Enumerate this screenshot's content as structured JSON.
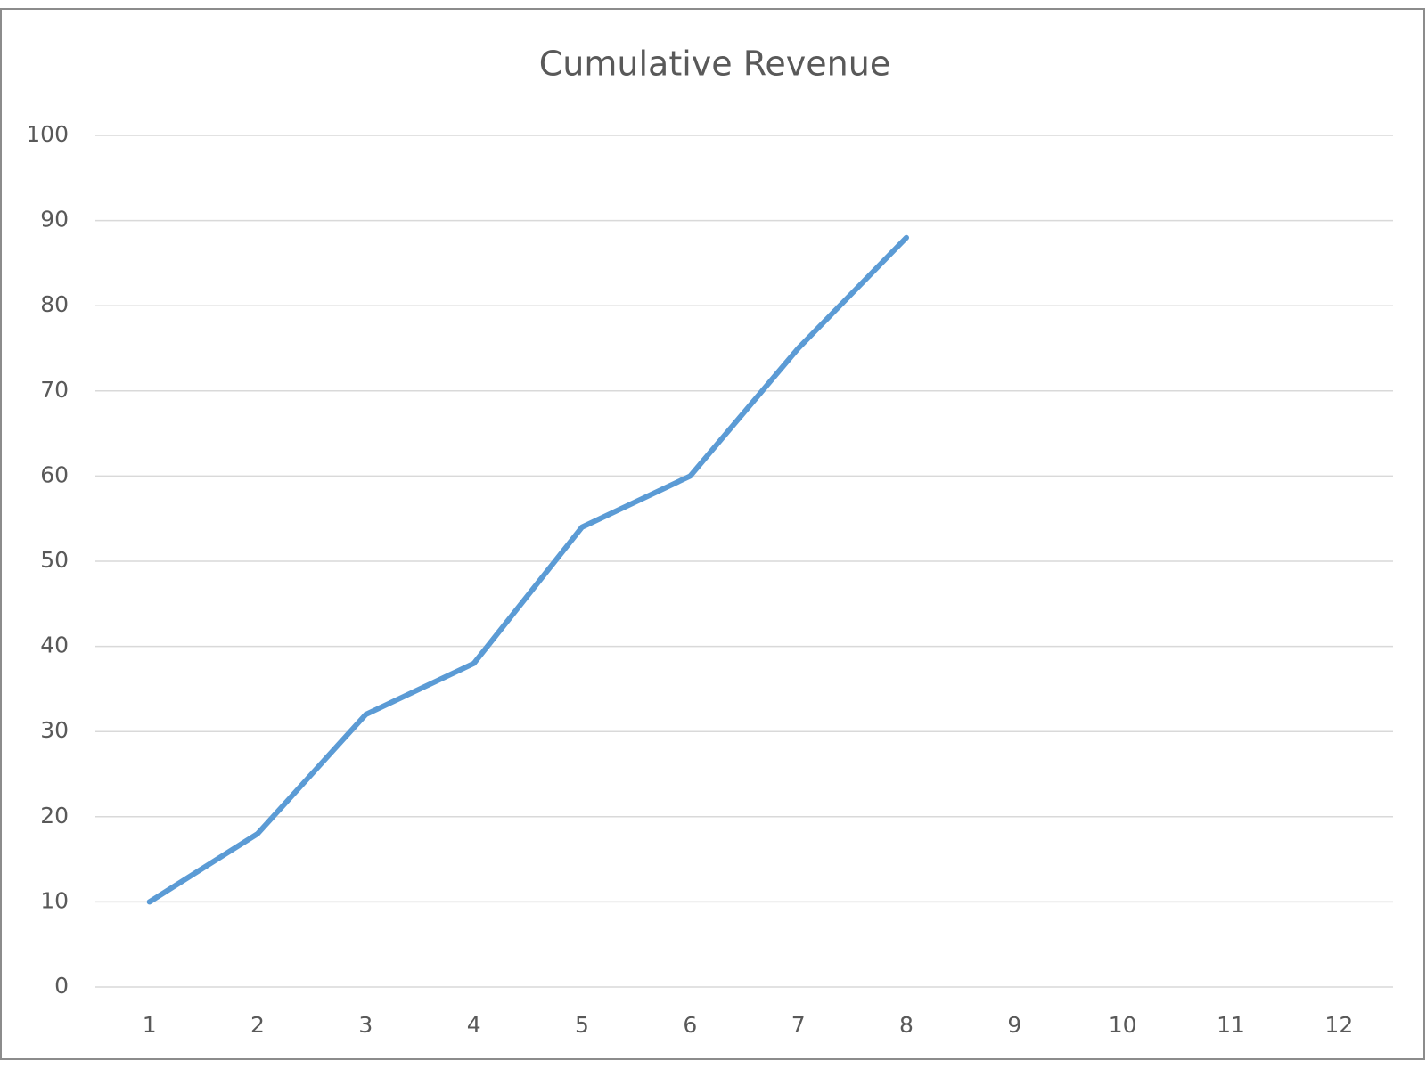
{
  "chart_data": {
    "type": "line",
    "title": "Cumulative Revenue",
    "categories": [
      "1",
      "2",
      "3",
      "4",
      "5",
      "6",
      "7",
      "8",
      "9",
      "10",
      "11",
      "12"
    ],
    "series": [
      {
        "name": "Cumulative Revenue",
        "color": "#5b9bd5",
        "values": [
          10,
          18,
          32,
          38,
          54,
          60,
          75,
          88,
          null,
          null,
          null,
          null
        ]
      }
    ],
    "ylim": [
      0,
      100
    ],
    "yticks": [
      0,
      10,
      20,
      30,
      40,
      50,
      60,
      70,
      80,
      90,
      100
    ],
    "grid": true
  }
}
